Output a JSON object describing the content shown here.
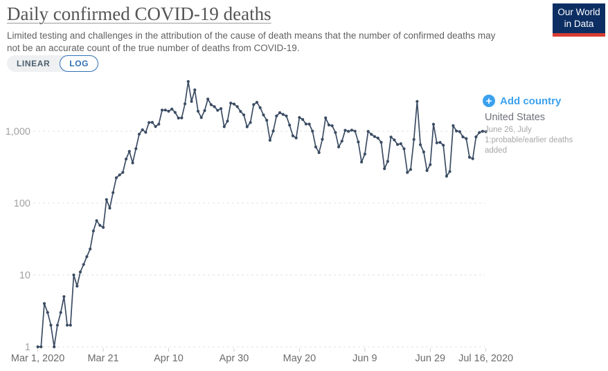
{
  "header": {
    "title": "Daily confirmed COVID-19 deaths",
    "subtitle_lines": [
      "Limited testing and challenges in the attribution of the cause of death means that the number of confirmed deaths may",
      "not be an accurate count of the true number of deaths from COVID-19."
    ],
    "logo": {
      "line1": "Our World",
      "line2": "in Data"
    }
  },
  "controls": {
    "scale_toggle": {
      "options": [
        "LINEAR",
        "LOG"
      ],
      "selected": "LOG"
    },
    "add_country": {
      "label": "Add country",
      "icon": "plus-circle-icon",
      "plus_glyph": "+"
    }
  },
  "series_label": {
    "name": "United States",
    "annotation": "June 26, July 1:probable/earlier deaths added"
  },
  "colors": {
    "line": "#3b4c63",
    "accent_blue": "#3ba1ee",
    "log_active_blue": "#2d70b5",
    "logo_navy": "#0c2e63",
    "logo_red": "#d73c32",
    "gridline": "#e0e0e0",
    "y_tick_label": "#a2a2a2",
    "x_tick_label": "#6b6b6b",
    "tick_mark": "#cccccc"
  },
  "chart_data": {
    "type": "line",
    "title": "Daily confirmed COVID-19 deaths",
    "y_scale": "log",
    "grid": "dashed horizontal",
    "legend_position": "right-of-last-point",
    "ylim": [
      1,
      5500
    ],
    "y_ticks": [
      {
        "value": 1,
        "label": "1"
      },
      {
        "value": 10,
        "label": "10"
      },
      {
        "value": 100,
        "label": "100"
      },
      {
        "value": 1000,
        "label": "1,000"
      }
    ],
    "x_ticks": [
      {
        "day": 0,
        "label": "Mar 1, 2020"
      },
      {
        "day": 20,
        "label": "Mar 21"
      },
      {
        "day": 40,
        "label": "Apr 10"
      },
      {
        "day": 60,
        "label": "Apr 30"
      },
      {
        "day": 80,
        "label": "May 20"
      },
      {
        "day": 100,
        "label": "Jun 9"
      },
      {
        "day": 120,
        "label": "Jun 29"
      },
      {
        "day": 137,
        "label": "Jul 16, 2020"
      }
    ],
    "series": [
      {
        "name": "United States",
        "color": "#3b4c63",
        "start_date": "2020-03-01",
        "end_date": "2020-07-16",
        "frequency": "daily",
        "values": [
          1,
          1,
          4,
          3,
          2,
          1,
          2,
          3,
          5,
          2,
          2,
          10,
          7,
          11,
          14,
          18,
          23,
          41,
          57,
          49,
          46,
          112,
          85,
          140,
          225,
          247,
          268,
          411,
          525,
          363,
          573,
          912,
          1049,
          968,
          1321,
          1331,
          1165,
          1255,
          1970,
          1973,
          1900,
          2035,
          1830,
          1528,
          1535,
          2407,
          4928,
          2600,
          3770,
          1900,
          1550,
          1940,
          2804,
          2341,
          2198,
          1957,
          2065,
          1157,
          1384,
          2470,
          2390,
          2201,
          1883,
          1691,
          1154,
          1324,
          2350,
          2528,
          2129,
          1687,
          1422,
          750,
          1008,
          1630,
          1813,
          1715,
          1635,
          1218,
          865,
          808,
          1552,
          1461,
          1263,
          1260,
          1003,
          605,
          505,
          774,
          1535,
          1223,
          1193,
          960,
          605,
          730,
          1031,
          995,
          1036,
          1005,
          709,
          373,
          482,
          995,
          906,
          843,
          803,
          701,
          302,
          381,
          831,
          759,
          653,
          672,
          570,
          267,
          294,
          768,
          2600,
          650,
          515,
          284,
          343,
          1250,
          690,
          700,
          640,
          237,
          275,
          1200,
          1010,
          990,
          835,
          790,
          435,
          415,
          835,
          960,
          1000,
          990
        ]
      }
    ]
  }
}
